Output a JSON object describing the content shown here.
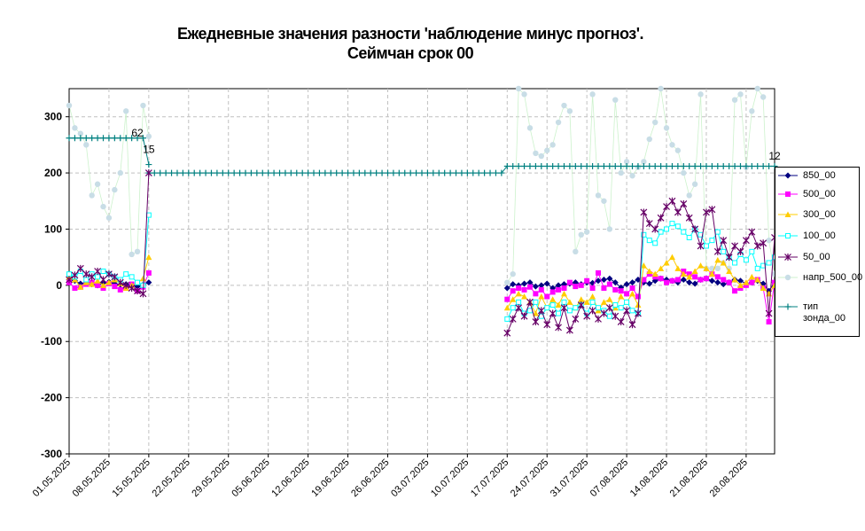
{
  "title": {
    "line1": "Ежедневные значения разности 'наблюдение минус прогноз'.",
    "line2": "Сеймчан     срок 00"
  },
  "chart_data": {
    "type": "line",
    "x_start": "01.05.2025",
    "x_end": "02.09.2025",
    "x_tick_labels": [
      "01.05.2025",
      "08.05.2025",
      "15.05.2025",
      "22.05.2025",
      "29.05.2025",
      "05.06.2025",
      "12.06.2025",
      "19.06.2025",
      "26.06.2025",
      "03.07.2025",
      "10.07.2025",
      "17.07.2025",
      "24.07.2025",
      "31.07.2025",
      "07.08.2025",
      "14.08.2025",
      "21.08.2025",
      "28.08.2025"
    ],
    "y_tick_labels": [
      "300",
      "200",
      "100",
      "0",
      "-100",
      "-200",
      "-300"
    ],
    "ylim": [
      -300,
      350
    ],
    "grid": true,
    "legend_position": "right",
    "annotations": [
      {
        "text": "62",
        "x": "13.05.2025",
        "y": 265
      },
      {
        "text": "15",
        "x": "15.05.2025",
        "y": 236
      },
      {
        "text": "12",
        "x": "02.09.2025",
        "y": 224
      }
    ],
    "series": [
      {
        "name": "850_00",
        "color": "#000080",
        "marker": "diamond",
        "segments": [
          {
            "start": "01.05.2025",
            "values": [
              10,
              8,
              3,
              5,
              2,
              0,
              4,
              6,
              3,
              1,
              2,
              0,
              -2,
              1,
              5
            ]
          },
          {
            "start": "17.07.2025",
            "values": [
              -5,
              2,
              0,
              3,
              5,
              -2,
              0,
              3,
              -5,
              0,
              2,
              3,
              5,
              2,
              5,
              4,
              8,
              10,
              12,
              5,
              -4,
              2,
              5,
              10,
              5,
              3,
              8,
              12,
              10,
              8,
              5,
              10,
              5,
              3,
              10,
              12,
              8,
              5,
              2,
              5,
              10,
              8,
              3,
              5,
              8,
              3,
              -10,
              5,
              8
            ]
          }
        ]
      },
      {
        "name": "500_00",
        "color": "#ff00ff",
        "marker": "square",
        "segments": [
          {
            "start": "01.05.2025",
            "values": [
              5,
              -5,
              -3,
              2,
              5,
              0,
              -5,
              3,
              -2,
              -8,
              -5,
              2,
              -10,
              -3,
              22
            ]
          },
          {
            "start": "17.07.2025",
            "values": [
              -25,
              -10,
              -5,
              -8,
              -3,
              -15,
              -8,
              -20,
              -12,
              -8,
              -5,
              5,
              -2,
              0,
              8,
              -5,
              22,
              -5,
              2,
              -8,
              -10,
              -15,
              -5,
              -20,
              10,
              20,
              15,
              12,
              5,
              8,
              10,
              25,
              20,
              15,
              10,
              12,
              20,
              15,
              10,
              5,
              -10,
              -5,
              0,
              5,
              10,
              -5,
              -65,
              5,
              10
            ]
          }
        ]
      },
      {
        "name": "300_00",
        "color": "#ffcc00",
        "marker": "triangle",
        "segments": [
          {
            "start": "01.05.2025",
            "values": [
              15,
              10,
              -3,
              5,
              2,
              8,
              0,
              5,
              10,
              3,
              -5,
              0,
              5,
              12,
              50
            ]
          },
          {
            "start": "17.07.2025",
            "values": [
              -40,
              -25,
              -15,
              -20,
              -30,
              -50,
              -20,
              -40,
              -25,
              -35,
              -15,
              -30,
              -40,
              -25,
              -30,
              -20,
              -45,
              -30,
              -25,
              -40,
              -20,
              -30,
              -15,
              -35,
              35,
              25,
              20,
              30,
              40,
              50,
              30,
              20,
              15,
              25,
              35,
              30,
              20,
              45,
              40,
              25,
              10,
              0,
              5,
              15,
              10,
              -5,
              -15,
              0,
              10
            ]
          }
        ]
      },
      {
        "name": "100_00",
        "color": "#00ffff",
        "marker": "square-open",
        "segments": [
          {
            "start": "01.05.2025",
            "values": [
              20,
              15,
              25,
              10,
              20,
              15,
              25,
              20,
              15,
              10,
              20,
              15,
              5,
              0,
              125
            ]
          },
          {
            "start": "17.07.2025",
            "values": [
              -60,
              -40,
              -30,
              -50,
              -45,
              -30,
              -55,
              -40,
              -35,
              -50,
              -30,
              -45,
              -40,
              -35,
              -50,
              -30,
              -40,
              -45,
              -55,
              -35,
              -40,
              -30,
              -45,
              -50,
              90,
              80,
              75,
              95,
              100,
              110,
              105,
              95,
              85,
              100,
              90,
              70,
              80,
              95,
              60,
              50,
              40,
              55,
              45,
              60,
              30,
              35,
              40,
              50,
              75
            ]
          }
        ]
      },
      {
        "name": "50_00",
        "color": "#660066",
        "marker": "star",
        "segments": [
          {
            "start": "01.05.2025",
            "values": [
              10,
              18,
              30,
              20,
              15,
              25,
              10,
              20,
              15,
              5,
              0,
              -5,
              -10,
              -15,
              200
            ]
          },
          {
            "start": "17.07.2025",
            "values": [
              -85,
              -60,
              -40,
              -55,
              -30,
              -65,
              -45,
              -70,
              -50,
              -75,
              -40,
              -80,
              -60,
              -35,
              -55,
              -45,
              -60,
              -50,
              -40,
              -55,
              -65,
              -45,
              -70,
              -50,
              130,
              110,
              100,
              120,
              140,
              150,
              130,
              145,
              120,
              100,
              70,
              130,
              135,
              60,
              80,
              50,
              70,
              60,
              80,
              95,
              70,
              75,
              -50,
              85,
              30
            ]
          }
        ]
      },
      {
        "name": "напр_500_00",
        "color": "#ccf2cc",
        "marker": "circle-light",
        "segments": [
          {
            "start": "01.05.2025",
            "values": [
              320,
              280,
              270,
              250,
              160,
              180,
              140,
              120,
              170,
              200,
              310,
              55,
              60,
              320,
              265
            ]
          },
          {
            "start": "17.07.2025",
            "values": [
              5,
              20,
              350,
              340,
              280,
              235,
              230,
              240,
              250,
              290,
              320,
              310,
              60,
              90,
              95,
              340,
              160,
              150,
              100,
              330,
              200,
              220,
              195,
              210,
              220,
              260,
              290,
              350,
              280,
              250,
              240,
              200,
              160,
              180,
              340,
              30,
              30,
              30,
              40,
              30,
              330,
              340,
              210,
              310,
              350,
              335,
              80,
              20,
              90
            ]
          }
        ]
      },
      {
        "name": "тип\nзонда_00",
        "color": "#008080",
        "marker": "plus",
        "segments": [
          {
            "start": "01.05.2025",
            "values": [
              262,
              262,
              262,
              262,
              262,
              262,
              262,
              262,
              262,
              262,
              262,
              262,
              262,
              262,
              215
            ]
          },
          {
            "start": "15.05.2025",
            "constant": 200,
            "end": "14.07.2025"
          },
          {
            "start": "15.07.2025",
            "values": [
              200,
              200,
              212
            ]
          },
          {
            "start": "18.07.2025",
            "constant": 212,
            "end": "02.09.2025"
          }
        ]
      }
    ]
  },
  "legend": {
    "items": [
      {
        "label": "850_00",
        "color": "#000080",
        "marker": "diamond"
      },
      {
        "label": "500_00",
        "color": "#ff00ff",
        "marker": "square"
      },
      {
        "label": "300_00",
        "color": "#ffcc00",
        "marker": "triangle"
      },
      {
        "label": "100_00",
        "color": "#00ffff",
        "marker": "square-open"
      },
      {
        "label": "50_00",
        "color": "#660066",
        "marker": "star"
      },
      {
        "label": "напр_500_00",
        "color": "#ccf2cc",
        "marker": "circle-light"
      },
      {
        "label": "тип зонда_00",
        "color": "#008080",
        "marker": "plus"
      }
    ]
  }
}
